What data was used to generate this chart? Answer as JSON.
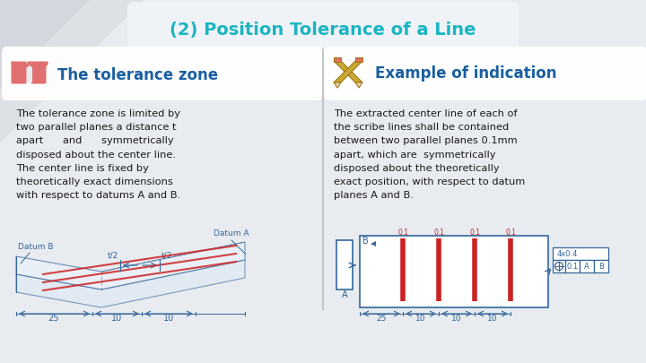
{
  "title": "(2) Position Tolerance of a Line",
  "title_color": "#1ab5c0",
  "background_color": "#e8ebef",
  "panel_color": "#ffffff",
  "left_header": "The tolerance zone",
  "right_header": "Example of indication",
  "header_color": "#1a5fa0",
  "left_text": "The tolerance zone is limited by\ntwo parallel planes a distance t\napart      and      symmetrically\ndisposed about the center line.\nThe center line is fixed by\ntheoretically exact dimensions\nwith respect to datums A and B.",
  "right_text": "The extracted center line of each of\nthe scribe lines shall be contained\nbetween two parallel planes 0.1mm\napart, which are  symmetrically\ndisposed about the theoretically\nexact position, with respect to datum\nplanes A and B.",
  "divider_color": "#aaaaaa",
  "icon_book_color": "#e07070",
  "icon_pencil_color": "#c8a832",
  "tri1_color": "#d0d4db",
  "tri2_color": "#c4c9d2",
  "title_bg": "#eef2f6",
  "diagram_blue": "#336699",
  "diagram_red": "#cc2222"
}
